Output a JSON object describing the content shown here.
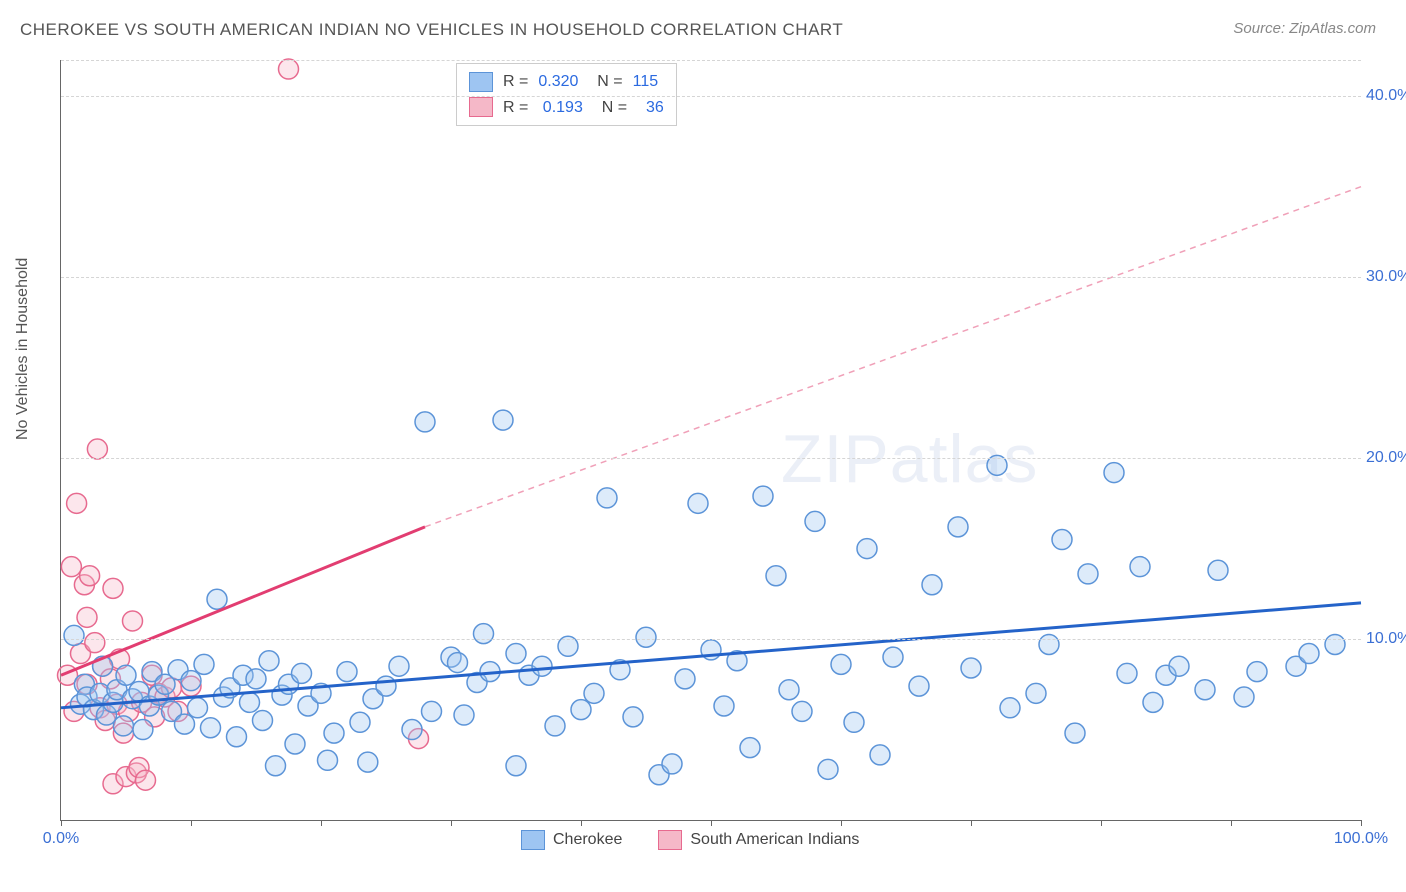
{
  "title": "CHEROKEE VS SOUTH AMERICAN INDIAN NO VEHICLES IN HOUSEHOLD CORRELATION CHART",
  "source_label": "Source:",
  "source_value": "ZipAtlas.com",
  "y_axis_label": "No Vehicles in Household",
  "watermark": {
    "prefix": "ZIP",
    "suffix": "atlas"
  },
  "chart": {
    "type": "scatter",
    "xlim": [
      0,
      100
    ],
    "ylim": [
      0,
      42
    ],
    "x_ticks": [
      0,
      10,
      20,
      30,
      40,
      50,
      60,
      70,
      80,
      90,
      100
    ],
    "x_tick_labels_shown": {
      "0": "0.0%",
      "100": "100.0%"
    },
    "y_gridlines": [
      10,
      20,
      30,
      40
    ],
    "y_gridlines_top": [
      42
    ],
    "y_tick_labels": {
      "10": "10.0%",
      "20": "20.0%",
      "30": "30.0%",
      "40": "40.0%"
    },
    "background_color": "#ffffff",
    "grid_color": "#d5d5d5",
    "axis_color": "#666666",
    "tick_label_color": "#3b6fd4",
    "series": [
      {
        "name": "Cherokee",
        "color_fill": "#9ec5f2",
        "color_stroke": "#5c94d8",
        "marker_radius": 10,
        "R": "0.320",
        "N": "115",
        "trend": {
          "x1": 0,
          "y1": 6.2,
          "x2": 100,
          "y2": 12.0,
          "color": "#2463c9",
          "width": 3,
          "dash": "none"
        },
        "points": [
          [
            1,
            10.2
          ],
          [
            1.5,
            6.4
          ],
          [
            1.8,
            7.5
          ],
          [
            2,
            6.8
          ],
          [
            2.5,
            6.1
          ],
          [
            3,
            7.0
          ],
          [
            3.2,
            8.5
          ],
          [
            3.5,
            5.8
          ],
          [
            4,
            6.5
          ],
          [
            4.3,
            7.2
          ],
          [
            4.8,
            5.2
          ],
          [
            5,
            8.0
          ],
          [
            5.5,
            6.7
          ],
          [
            6,
            7.1
          ],
          [
            6.3,
            5.0
          ],
          [
            6.8,
            6.3
          ],
          [
            7,
            8.2
          ],
          [
            7.5,
            6.9
          ],
          [
            8,
            7.5
          ],
          [
            8.5,
            6.0
          ],
          [
            9,
            8.3
          ],
          [
            9.5,
            5.3
          ],
          [
            10,
            7.7
          ],
          [
            10.5,
            6.2
          ],
          [
            11,
            8.6
          ],
          [
            11.5,
            5.1
          ],
          [
            12,
            12.2
          ],
          [
            12.5,
            6.8
          ],
          [
            13,
            7.3
          ],
          [
            13.5,
            4.6
          ],
          [
            14,
            8.0
          ],
          [
            14.5,
            6.5
          ],
          [
            15,
            7.8
          ],
          [
            15.5,
            5.5
          ],
          [
            16,
            8.8
          ],
          [
            16.5,
            3.0
          ],
          [
            17,
            6.9
          ],
          [
            17.5,
            7.5
          ],
          [
            18,
            4.2
          ],
          [
            18.5,
            8.1
          ],
          [
            19,
            6.3
          ],
          [
            20,
            7.0
          ],
          [
            20.5,
            3.3
          ],
          [
            21,
            4.8
          ],
          [
            22,
            8.2
          ],
          [
            23,
            5.4
          ],
          [
            23.6,
            3.2
          ],
          [
            24,
            6.7
          ],
          [
            25,
            7.4
          ],
          [
            26,
            8.5
          ],
          [
            27,
            5.0
          ],
          [
            28,
            22.0
          ],
          [
            28.5,
            6.0
          ],
          [
            30,
            9.0
          ],
          [
            30.5,
            8.7
          ],
          [
            31,
            5.8
          ],
          [
            32,
            7.6
          ],
          [
            32.5,
            10.3
          ],
          [
            33,
            8.2
          ],
          [
            34,
            22.1
          ],
          [
            35,
            3.0
          ],
          [
            35,
            9.2
          ],
          [
            36,
            8.0
          ],
          [
            37,
            8.5
          ],
          [
            38,
            5.2
          ],
          [
            39,
            9.6
          ],
          [
            40,
            6.1
          ],
          [
            41,
            7.0
          ],
          [
            42,
            17.8
          ],
          [
            43,
            8.3
          ],
          [
            44,
            5.7
          ],
          [
            45,
            10.1
          ],
          [
            46,
            2.5
          ],
          [
            47,
            3.1
          ],
          [
            48,
            7.8
          ],
          [
            49,
            17.5
          ],
          [
            50,
            9.4
          ],
          [
            51,
            6.3
          ],
          [
            52,
            8.8
          ],
          [
            53,
            4.0
          ],
          [
            54,
            17.9
          ],
          [
            55,
            13.5
          ],
          [
            56,
            7.2
          ],
          [
            57,
            6.0
          ],
          [
            58,
            16.5
          ],
          [
            59,
            2.8
          ],
          [
            60,
            8.6
          ],
          [
            61,
            5.4
          ],
          [
            62,
            15.0
          ],
          [
            63,
            3.6
          ],
          [
            64,
            9.0
          ],
          [
            66,
            7.4
          ],
          [
            67,
            13.0
          ],
          [
            69,
            16.2
          ],
          [
            70,
            8.4
          ],
          [
            72,
            19.6
          ],
          [
            73,
            6.2
          ],
          [
            75,
            7.0
          ],
          [
            76,
            9.7
          ],
          [
            77,
            15.5
          ],
          [
            78,
            4.8
          ],
          [
            79,
            13.6
          ],
          [
            81,
            19.2
          ],
          [
            82,
            8.1
          ],
          [
            83,
            14.0
          ],
          [
            84,
            6.5
          ],
          [
            85,
            8.0
          ],
          [
            86,
            8.5
          ],
          [
            88,
            7.2
          ],
          [
            89,
            13.8
          ],
          [
            91,
            6.8
          ],
          [
            92,
            8.2
          ],
          [
            95,
            8.5
          ],
          [
            96,
            9.2
          ],
          [
            98,
            9.7
          ]
        ]
      },
      {
        "name": "South American Indians",
        "color_fill": "#f5b8c8",
        "color_stroke": "#e76a8f",
        "marker_radius": 10,
        "R": "0.193",
        "N": "36",
        "trend_solid": {
          "x1": 0,
          "y1": 8.0,
          "x2": 28,
          "y2": 16.2,
          "color": "#e23d71",
          "width": 3
        },
        "trend_dash": {
          "x1": 28,
          "y1": 16.2,
          "x2": 100,
          "y2": 35.0,
          "color": "#f0a0b8",
          "width": 1.5,
          "dash": "6,5"
        },
        "points": [
          [
            0.5,
            8.0
          ],
          [
            0.8,
            14.0
          ],
          [
            1,
            6.0
          ],
          [
            1.2,
            17.5
          ],
          [
            1.5,
            9.2
          ],
          [
            1.8,
            13.0
          ],
          [
            2,
            11.2
          ],
          [
            2,
            7.5
          ],
          [
            2.2,
            13.5
          ],
          [
            2.6,
            9.8
          ],
          [
            2.8,
            20.5
          ],
          [
            3,
            6.2
          ],
          [
            3.2,
            8.5
          ],
          [
            3.4,
            5.5
          ],
          [
            3.8,
            7.8
          ],
          [
            4,
            12.8
          ],
          [
            4,
            2.0
          ],
          [
            4.3,
            6.4
          ],
          [
            4.5,
            8.9
          ],
          [
            4.8,
            4.8
          ],
          [
            5,
            2.4
          ],
          [
            5.2,
            6.0
          ],
          [
            5.5,
            11.0
          ],
          [
            5.8,
            2.6
          ],
          [
            6,
            2.9
          ],
          [
            6.2,
            6.5
          ],
          [
            6.5,
            2.2
          ],
          [
            7,
            8.0
          ],
          [
            7.2,
            5.7
          ],
          [
            7.5,
            7.0
          ],
          [
            8,
            6.8
          ],
          [
            8.5,
            7.3
          ],
          [
            9,
            6.0
          ],
          [
            10,
            7.4
          ],
          [
            17.5,
            41.5
          ],
          [
            27.5,
            4.5
          ]
        ]
      }
    ],
    "legend_bottom": [
      {
        "label": "Cherokee",
        "fill": "#9ec5f2",
        "stroke": "#5c94d8"
      },
      {
        "label": "South American Indians",
        "fill": "#f5b8c8",
        "stroke": "#e76a8f"
      }
    ]
  }
}
